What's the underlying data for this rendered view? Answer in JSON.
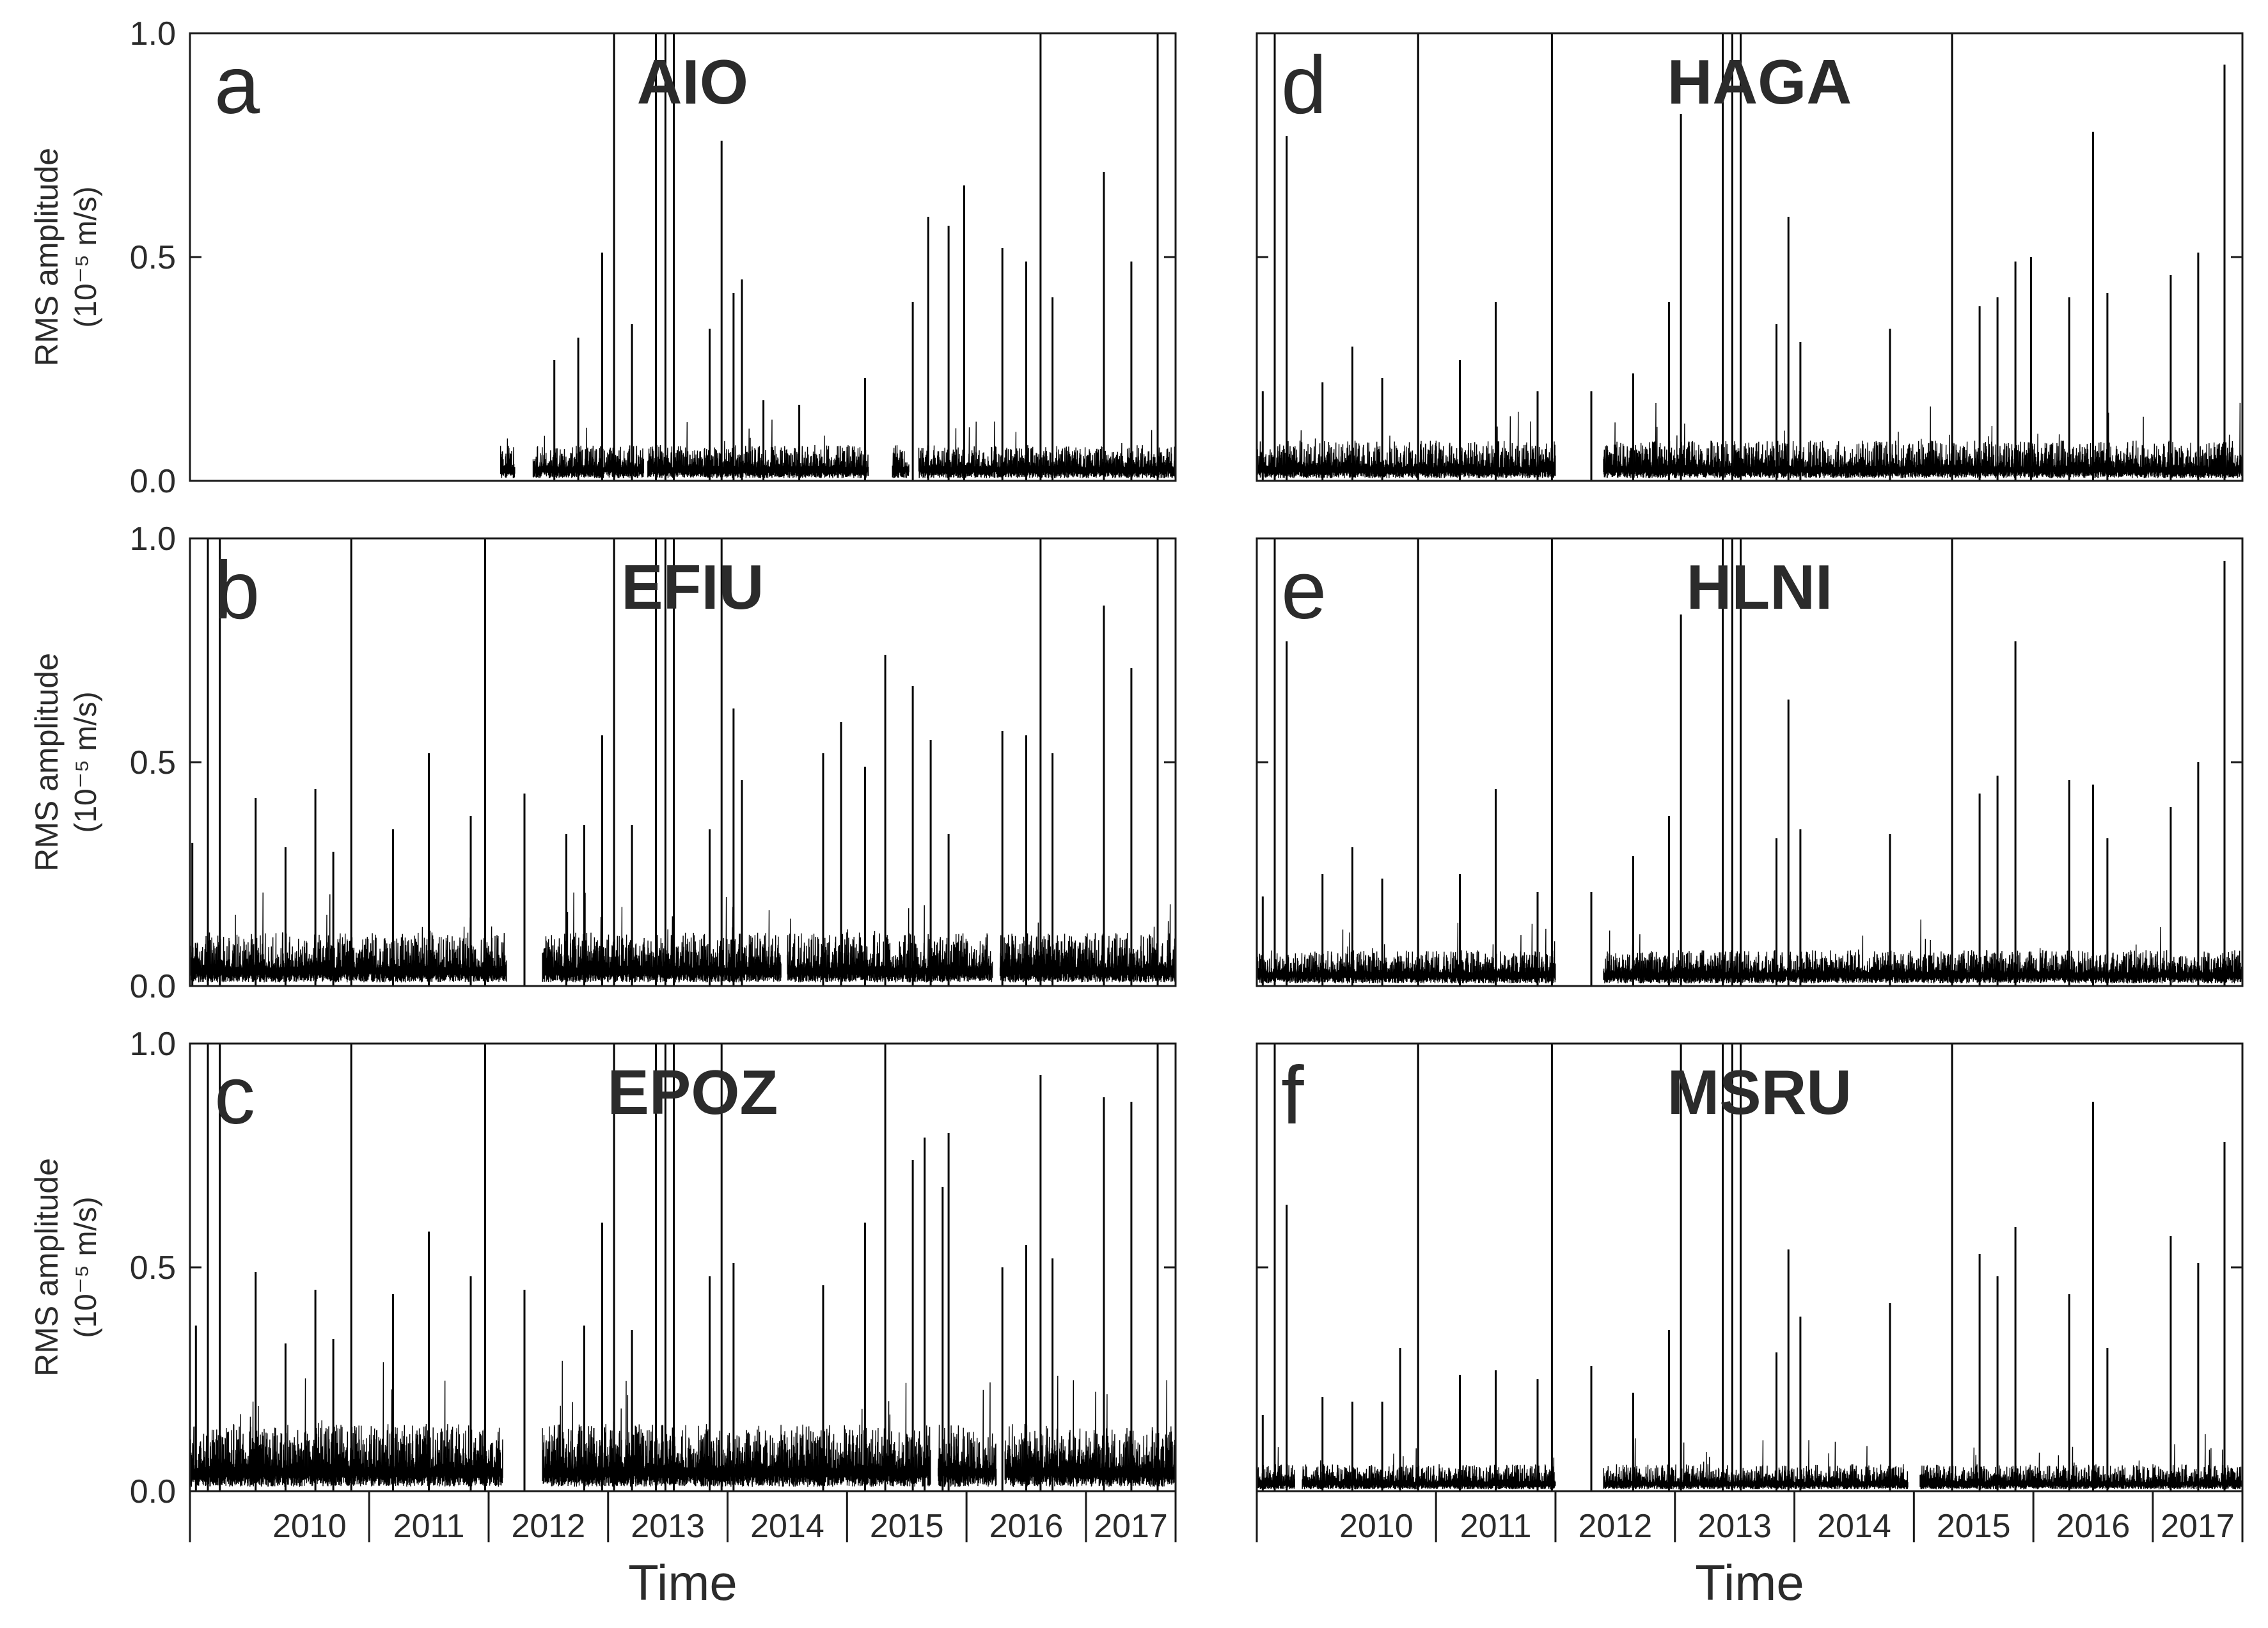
{
  "chart_data": [
    {
      "type": "line",
      "panel_letter": "a",
      "title": "AIO",
      "xlabel": "",
      "ylabel": "RMS amplitude",
      "ylabel_unit": "(10⁻⁵ m/s)",
      "ylim": [
        0,
        1.0
      ],
      "yticks": [
        0.0,
        0.5,
        1.0
      ],
      "ytick_labels": [
        "0.0",
        "0.5",
        "1.0"
      ],
      "xlim": [
        2009.5,
        2017.75
      ],
      "data_start": 2012.1,
      "gaps": [
        [
          2012.22,
          2012.37
        ],
        [
          2013.3,
          2013.33
        ],
        [
          2015.18,
          2015.38
        ],
        [
          2015.52,
          2015.6
        ]
      ],
      "base_level": 0.03,
      "base_amplitude": 0.05,
      "spikes": [
        {
          "x": 2012.55,
          "y": 0.27
        },
        {
          "x": 2012.75,
          "y": 0.32
        },
        {
          "x": 2012.95,
          "y": 0.51
        },
        {
          "x": 2013.05,
          "y": 1.0
        },
        {
          "x": 2013.2,
          "y": 0.35
        },
        {
          "x": 2013.4,
          "y": 1.0
        },
        {
          "x": 2013.48,
          "y": 1.0
        },
        {
          "x": 2013.55,
          "y": 1.0
        },
        {
          "x": 2013.85,
          "y": 0.34
        },
        {
          "x": 2013.95,
          "y": 0.76
        },
        {
          "x": 2014.05,
          "y": 0.42
        },
        {
          "x": 2014.12,
          "y": 0.45
        },
        {
          "x": 2014.3,
          "y": 0.18
        },
        {
          "x": 2014.6,
          "y": 0.17
        },
        {
          "x": 2015.15,
          "y": 0.23
        },
        {
          "x": 2015.55,
          "y": 0.4
        },
        {
          "x": 2015.68,
          "y": 0.59
        },
        {
          "x": 2015.85,
          "y": 0.57
        },
        {
          "x": 2015.98,
          "y": 0.66
        },
        {
          "x": 2016.3,
          "y": 0.52
        },
        {
          "x": 2016.5,
          "y": 0.49
        },
        {
          "x": 2016.62,
          "y": 1.0
        },
        {
          "x": 2016.72,
          "y": 0.41
        },
        {
          "x": 2017.15,
          "y": 0.69
        },
        {
          "x": 2017.38,
          "y": 0.49
        },
        {
          "x": 2017.6,
          "y": 1.0
        }
      ]
    },
    {
      "type": "line",
      "panel_letter": "b",
      "title": "EFIU",
      "xlabel": "",
      "ylabel": "RMS amplitude",
      "ylabel_unit": "(10⁻⁵ m/s)",
      "ylim": [
        0,
        1.0
      ],
      "yticks": [
        0.0,
        0.5,
        1.0
      ],
      "ytick_labels": [
        "0.0",
        "0.5",
        "1.0"
      ],
      "xlim": [
        2009.5,
        2017.75
      ],
      "data_start": 2009.5,
      "gaps": [
        [
          2012.15,
          2012.45
        ],
        [
          2014.45,
          2014.5
        ],
        [
          2016.22,
          2016.28
        ]
      ],
      "base_level": 0.04,
      "base_amplitude": 0.08,
      "spikes": [
        {
          "x": 2009.52,
          "y": 0.32
        },
        {
          "x": 2009.65,
          "y": 1.0
        },
        {
          "x": 2009.75,
          "y": 1.0
        },
        {
          "x": 2010.05,
          "y": 0.42
        },
        {
          "x": 2010.3,
          "y": 0.31
        },
        {
          "x": 2010.55,
          "y": 0.44
        },
        {
          "x": 2010.7,
          "y": 0.3
        },
        {
          "x": 2010.85,
          "y": 1.0
        },
        {
          "x": 2011.2,
          "y": 0.35
        },
        {
          "x": 2011.5,
          "y": 0.52
        },
        {
          "x": 2011.85,
          "y": 0.38
        },
        {
          "x": 2011.97,
          "y": 1.0
        },
        {
          "x": 2012.3,
          "y": 0.43
        },
        {
          "x": 2012.65,
          "y": 0.34
        },
        {
          "x": 2012.8,
          "y": 0.36
        },
        {
          "x": 2012.95,
          "y": 0.56
        },
        {
          "x": 2013.05,
          "y": 1.0
        },
        {
          "x": 2013.2,
          "y": 0.36
        },
        {
          "x": 2013.4,
          "y": 1.0
        },
        {
          "x": 2013.48,
          "y": 1.0
        },
        {
          "x": 2013.55,
          "y": 1.0
        },
        {
          "x": 2013.85,
          "y": 0.35
        },
        {
          "x": 2013.95,
          "y": 1.0
        },
        {
          "x": 2014.05,
          "y": 0.62
        },
        {
          "x": 2014.12,
          "y": 0.46
        },
        {
          "x": 2014.8,
          "y": 0.52
        },
        {
          "x": 2014.95,
          "y": 0.59
        },
        {
          "x": 2015.15,
          "y": 0.49
        },
        {
          "x": 2015.32,
          "y": 0.74
        },
        {
          "x": 2015.55,
          "y": 0.67
        },
        {
          "x": 2015.7,
          "y": 0.55
        },
        {
          "x": 2015.85,
          "y": 0.34
        },
        {
          "x": 2016.3,
          "y": 0.57
        },
        {
          "x": 2016.5,
          "y": 0.56
        },
        {
          "x": 2016.62,
          "y": 1.0
        },
        {
          "x": 2016.72,
          "y": 0.52
        },
        {
          "x": 2017.15,
          "y": 0.85
        },
        {
          "x": 2017.38,
          "y": 0.71
        },
        {
          "x": 2017.6,
          "y": 1.0
        }
      ]
    },
    {
      "type": "line",
      "panel_letter": "c",
      "title": "EPOZ",
      "xlabel": "Time",
      "ylabel": "RMS amplitude",
      "ylabel_unit": "(10⁻⁵ m/s)",
      "ylim": [
        0,
        1.0
      ],
      "yticks": [
        0.0,
        0.5,
        1.0
      ],
      "ytick_labels": [
        "0.0",
        "0.5",
        "1.0"
      ],
      "xlim": [
        2009.5,
        2017.75
      ],
      "data_start": 2009.5,
      "gaps": [
        [
          2012.12,
          2012.45
        ],
        [
          2015.7,
          2015.76
        ],
        [
          2016.25,
          2016.32
        ]
      ],
      "base_level": 0.05,
      "base_amplitude": 0.1,
      "spikes": [
        {
          "x": 2009.55,
          "y": 0.37
        },
        {
          "x": 2009.65,
          "y": 1.0
        },
        {
          "x": 2009.75,
          "y": 1.0
        },
        {
          "x": 2010.05,
          "y": 0.49
        },
        {
          "x": 2010.3,
          "y": 0.33
        },
        {
          "x": 2010.55,
          "y": 0.45
        },
        {
          "x": 2010.7,
          "y": 0.34
        },
        {
          "x": 2010.85,
          "y": 1.0
        },
        {
          "x": 2011.2,
          "y": 0.44
        },
        {
          "x": 2011.5,
          "y": 0.58
        },
        {
          "x": 2011.85,
          "y": 0.48
        },
        {
          "x": 2011.97,
          "y": 1.0
        },
        {
          "x": 2012.3,
          "y": 0.45
        },
        {
          "x": 2012.8,
          "y": 0.37
        },
        {
          "x": 2012.95,
          "y": 0.6
        },
        {
          "x": 2013.05,
          "y": 1.0
        },
        {
          "x": 2013.2,
          "y": 0.36
        },
        {
          "x": 2013.4,
          "y": 1.0
        },
        {
          "x": 2013.48,
          "y": 1.0
        },
        {
          "x": 2013.55,
          "y": 1.0
        },
        {
          "x": 2013.85,
          "y": 0.48
        },
        {
          "x": 2013.95,
          "y": 1.0
        },
        {
          "x": 2014.05,
          "y": 0.51
        },
        {
          "x": 2014.8,
          "y": 0.46
        },
        {
          "x": 2015.15,
          "y": 0.6
        },
        {
          "x": 2015.32,
          "y": 1.0
        },
        {
          "x": 2015.55,
          "y": 0.74
        },
        {
          "x": 2015.65,
          "y": 0.79
        },
        {
          "x": 2015.8,
          "y": 0.68
        },
        {
          "x": 2015.85,
          "y": 0.8
        },
        {
          "x": 2016.3,
          "y": 0.5
        },
        {
          "x": 2016.5,
          "y": 0.55
        },
        {
          "x": 2016.62,
          "y": 0.93
        },
        {
          "x": 2016.72,
          "y": 0.52
        },
        {
          "x": 2017.15,
          "y": 0.88
        },
        {
          "x": 2017.38,
          "y": 0.87
        },
        {
          "x": 2017.6,
          "y": 1.0
        }
      ]
    },
    {
      "type": "line",
      "panel_letter": "d",
      "title": "HAGA",
      "xlabel": "",
      "ylabel": "",
      "ylabel_unit": "",
      "ylim": [
        0,
        1.0
      ],
      "yticks": [
        0.0,
        0.5,
        1.0
      ],
      "ytick_labels": [],
      "xlim": [
        2009.5,
        2017.75
      ],
      "data_start": 2009.5,
      "gaps": [
        [
          2012.0,
          2012.4
        ]
      ],
      "base_level": 0.03,
      "base_amplitude": 0.06,
      "spikes": [
        {
          "x": 2009.55,
          "y": 0.2
        },
        {
          "x": 2009.65,
          "y": 1.0
        },
        {
          "x": 2009.75,
          "y": 0.77
        },
        {
          "x": 2010.05,
          "y": 0.22
        },
        {
          "x": 2010.3,
          "y": 0.3
        },
        {
          "x": 2010.55,
          "y": 0.23
        },
        {
          "x": 2010.85,
          "y": 1.0
        },
        {
          "x": 2011.2,
          "y": 0.27
        },
        {
          "x": 2011.5,
          "y": 0.4
        },
        {
          "x": 2011.85,
          "y": 0.2
        },
        {
          "x": 2011.97,
          "y": 1.0
        },
        {
          "x": 2012.3,
          "y": 0.2
        },
        {
          "x": 2012.65,
          "y": 0.24
        },
        {
          "x": 2012.95,
          "y": 0.4
        },
        {
          "x": 2013.05,
          "y": 0.82
        },
        {
          "x": 2013.4,
          "y": 1.0
        },
        {
          "x": 2013.48,
          "y": 1.0
        },
        {
          "x": 2013.55,
          "y": 1.0
        },
        {
          "x": 2013.85,
          "y": 0.35
        },
        {
          "x": 2013.95,
          "y": 0.59
        },
        {
          "x": 2014.05,
          "y": 0.31
        },
        {
          "x": 2014.8,
          "y": 0.34
        },
        {
          "x": 2015.32,
          "y": 1.0
        },
        {
          "x": 2015.55,
          "y": 0.39
        },
        {
          "x": 2015.7,
          "y": 0.41
        },
        {
          "x": 2015.85,
          "y": 0.49
        },
        {
          "x": 2015.98,
          "y": 0.5
        },
        {
          "x": 2016.3,
          "y": 0.41
        },
        {
          "x": 2016.5,
          "y": 0.78
        },
        {
          "x": 2016.62,
          "y": 0.42
        },
        {
          "x": 2017.15,
          "y": 0.46
        },
        {
          "x": 2017.38,
          "y": 0.51
        },
        {
          "x": 2017.6,
          "y": 0.93
        }
      ]
    },
    {
      "type": "line",
      "panel_letter": "e",
      "title": "HLNI",
      "xlabel": "",
      "ylabel": "",
      "ylabel_unit": "",
      "ylim": [
        0,
        1.0
      ],
      "yticks": [
        0.0,
        0.5,
        1.0
      ],
      "ytick_labels": [],
      "xlim": [
        2009.5,
        2017.75
      ],
      "data_start": 2009.5,
      "gaps": [
        [
          2012.0,
          2012.4
        ]
      ],
      "base_level": 0.03,
      "base_amplitude": 0.05,
      "spikes": [
        {
          "x": 2009.55,
          "y": 0.2
        },
        {
          "x": 2009.65,
          "y": 1.0
        },
        {
          "x": 2009.75,
          "y": 0.77
        },
        {
          "x": 2010.05,
          "y": 0.25
        },
        {
          "x": 2010.3,
          "y": 0.31
        },
        {
          "x": 2010.55,
          "y": 0.24
        },
        {
          "x": 2010.85,
          "y": 1.0
        },
        {
          "x": 2011.2,
          "y": 0.25
        },
        {
          "x": 2011.5,
          "y": 0.44
        },
        {
          "x": 2011.85,
          "y": 0.21
        },
        {
          "x": 2011.97,
          "y": 1.0
        },
        {
          "x": 2012.3,
          "y": 0.21
        },
        {
          "x": 2012.65,
          "y": 0.29
        },
        {
          "x": 2012.95,
          "y": 0.38
        },
        {
          "x": 2013.05,
          "y": 0.83
        },
        {
          "x": 2013.4,
          "y": 1.0
        },
        {
          "x": 2013.48,
          "y": 1.0
        },
        {
          "x": 2013.55,
          "y": 1.0
        },
        {
          "x": 2013.85,
          "y": 0.33
        },
        {
          "x": 2013.95,
          "y": 0.64
        },
        {
          "x": 2014.05,
          "y": 0.35
        },
        {
          "x": 2014.8,
          "y": 0.34
        },
        {
          "x": 2015.32,
          "y": 1.0
        },
        {
          "x": 2015.55,
          "y": 0.43
        },
        {
          "x": 2015.7,
          "y": 0.47
        },
        {
          "x": 2015.85,
          "y": 0.77
        },
        {
          "x": 2016.3,
          "y": 0.46
        },
        {
          "x": 2016.5,
          "y": 0.45
        },
        {
          "x": 2016.62,
          "y": 0.33
        },
        {
          "x": 2017.15,
          "y": 0.4
        },
        {
          "x": 2017.38,
          "y": 0.5
        },
        {
          "x": 2017.6,
          "y": 0.95
        }
      ]
    },
    {
      "type": "line",
      "panel_letter": "f",
      "title": "MSRU",
      "xlabel": "Time",
      "ylabel": "",
      "ylabel_unit": "",
      "ylim": [
        0,
        1.0
      ],
      "yticks": [
        0.0,
        0.5,
        1.0
      ],
      "ytick_labels": [],
      "xlim": [
        2009.5,
        2017.75
      ],
      "data_start": 2009.5,
      "gaps": [
        [
          2009.82,
          2009.88
        ],
        [
          2012.0,
          2012.4
        ],
        [
          2014.95,
          2015.05
        ]
      ],
      "base_level": 0.02,
      "base_amplitude": 0.04,
      "spikes": [
        {
          "x": 2009.55,
          "y": 0.17
        },
        {
          "x": 2009.65,
          "y": 1.0
        },
        {
          "x": 2009.75,
          "y": 0.64
        },
        {
          "x": 2010.05,
          "y": 0.21
        },
        {
          "x": 2010.3,
          "y": 0.2
        },
        {
          "x": 2010.55,
          "y": 0.2
        },
        {
          "x": 2010.7,
          "y": 0.32
        },
        {
          "x": 2010.85,
          "y": 1.0
        },
        {
          "x": 2011.2,
          "y": 0.26
        },
        {
          "x": 2011.5,
          "y": 0.27
        },
        {
          "x": 2011.85,
          "y": 0.25
        },
        {
          "x": 2011.97,
          "y": 1.0
        },
        {
          "x": 2012.3,
          "y": 0.28
        },
        {
          "x": 2012.65,
          "y": 0.22
        },
        {
          "x": 2012.95,
          "y": 0.36
        },
        {
          "x": 2013.05,
          "y": 1.0
        },
        {
          "x": 2013.4,
          "y": 1.0
        },
        {
          "x": 2013.48,
          "y": 1.0
        },
        {
          "x": 2013.55,
          "y": 1.0
        },
        {
          "x": 2013.85,
          "y": 0.31
        },
        {
          "x": 2013.95,
          "y": 0.54
        },
        {
          "x": 2014.05,
          "y": 0.39
        },
        {
          "x": 2014.8,
          "y": 0.42
        },
        {
          "x": 2015.32,
          "y": 1.0
        },
        {
          "x": 2015.55,
          "y": 0.53
        },
        {
          "x": 2015.7,
          "y": 0.48
        },
        {
          "x": 2015.85,
          "y": 0.59
        },
        {
          "x": 2016.3,
          "y": 0.44
        },
        {
          "x": 2016.5,
          "y": 0.87
        },
        {
          "x": 2016.62,
          "y": 0.32
        },
        {
          "x": 2017.15,
          "y": 0.57
        },
        {
          "x": 2017.38,
          "y": 0.51
        },
        {
          "x": 2017.6,
          "y": 0.78
        }
      ]
    }
  ],
  "x_axis": {
    "year_boundaries": [
      2010,
      2011,
      2012,
      2013,
      2014,
      2015,
      2016,
      2017
    ],
    "year_labels": [
      "2010",
      "2011",
      "2012",
      "2013",
      "2014",
      "2015",
      "2016",
      "2017"
    ]
  },
  "colors": {
    "trace": "#000000",
    "axis": "#1a1a1a",
    "text": "#2b2b2b"
  }
}
